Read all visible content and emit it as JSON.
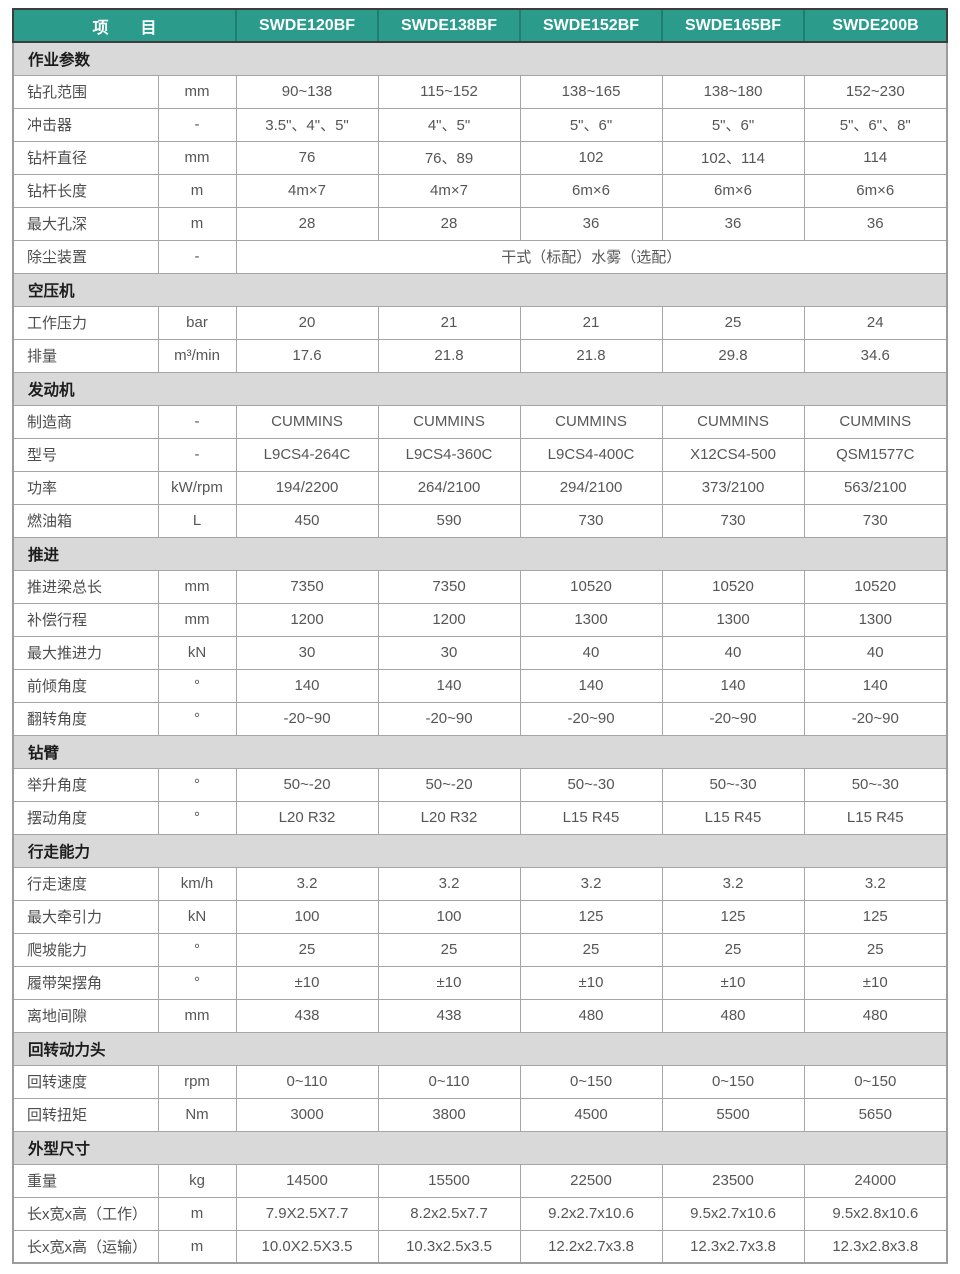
{
  "colors": {
    "header_bg": "#2b9b8b",
    "header_text": "#ffffff",
    "header_divider": "#1e7f71",
    "dark_border": "#3d3d3d",
    "section_bg": "#d9d9d9",
    "grid_border": "#a5a5a5",
    "body_text": "#565656"
  },
  "table": {
    "columns": [
      "项　　目",
      "SWDE120BF",
      "SWDE138BF",
      "SWDE152BF",
      "SWDE165BF",
      "SWDE200B"
    ],
    "sections": [
      {
        "title": "作业参数",
        "rows": [
          {
            "name": "钻孔范围",
            "unit": "mm",
            "values": [
              "90~138",
              "115~152",
              "138~165",
              "138~180",
              "152~230"
            ]
          },
          {
            "name": "冲击器",
            "unit": "-",
            "values": [
              "3.5\"、4\"、5\"",
              "4\"、5\"",
              "5\"、6\"",
              "5\"、6\"",
              "5\"、6\"、8\""
            ]
          },
          {
            "name": "钻杆直径",
            "unit": "mm",
            "values": [
              "76",
              "76、89",
              "102",
              "102、114",
              "114"
            ]
          },
          {
            "name": "钻杆长度",
            "unit": "m",
            "values": [
              "4m×7",
              "4m×7",
              "6m×6",
              "6m×6",
              "6m×6"
            ]
          },
          {
            "name": "最大孔深",
            "unit": "m",
            "values": [
              "28",
              "28",
              "36",
              "36",
              "36"
            ]
          },
          {
            "name": "除尘装置",
            "unit": "-",
            "span": "干式（标配）水雾（选配）"
          }
        ]
      },
      {
        "title": "空压机",
        "rows": [
          {
            "name": "工作压力",
            "unit": "bar",
            "values": [
              "20",
              "21",
              "21",
              "25",
              "24"
            ]
          },
          {
            "name": "排量",
            "unit": "m³/min",
            "values": [
              "17.6",
              "21.8",
              "21.8",
              "29.8",
              "34.6"
            ]
          }
        ]
      },
      {
        "title": "发动机",
        "rows": [
          {
            "name": "制造商",
            "unit": "-",
            "values": [
              "CUMMINS",
              "CUMMINS",
              "CUMMINS",
              "CUMMINS",
              "CUMMINS"
            ]
          },
          {
            "name": "型号",
            "unit": "-",
            "values": [
              "L9CS4-264C",
              "L9CS4-360C",
              "L9CS4-400C",
              "X12CS4-500",
              "QSM1577C"
            ]
          },
          {
            "name": "功率",
            "unit": "kW/rpm",
            "values": [
              "194/2200",
              "264/2100",
              "294/2100",
              "373/2100",
              "563/2100"
            ]
          },
          {
            "name": "燃油箱",
            "unit": "L",
            "values": [
              "450",
              "590",
              "730",
              "730",
              "730"
            ]
          }
        ]
      },
      {
        "title": "推进",
        "rows": [
          {
            "name": "推进梁总长",
            "unit": "mm",
            "values": [
              "7350",
              "7350",
              "10520",
              "10520",
              "10520"
            ]
          },
          {
            "name": "补偿行程",
            "unit": "mm",
            "values": [
              "1200",
              "1200",
              "1300",
              "1300",
              "1300"
            ]
          },
          {
            "name": "最大推进力",
            "unit": "kN",
            "values": [
              "30",
              "30",
              "40",
              "40",
              "40"
            ]
          },
          {
            "name": "前倾角度",
            "unit": "°",
            "values": [
              "140",
              "140",
              "140",
              "140",
              "140"
            ]
          },
          {
            "name": "翻转角度",
            "unit": "°",
            "values": [
              "-20~90",
              "-20~90",
              "-20~90",
              "-20~90",
              "-20~90"
            ]
          }
        ]
      },
      {
        "title": "钻臂",
        "rows": [
          {
            "name": "举升角度",
            "unit": "°",
            "values": [
              "50~-20",
              "50~-20",
              "50~-30",
              "50~-30",
              "50~-30"
            ]
          },
          {
            "name": "摆动角度",
            "unit": "°",
            "values": [
              "L20 R32",
              "L20 R32",
              "L15 R45",
              "L15 R45",
              "L15 R45"
            ]
          }
        ]
      },
      {
        "title": "行走能力",
        "rows": [
          {
            "name": "行走速度",
            "unit": "km/h",
            "values": [
              "3.2",
              "3.2",
              "3.2",
              "3.2",
              "3.2"
            ]
          },
          {
            "name": "最大牵引力",
            "unit": "kN",
            "values": [
              "100",
              "100",
              "125",
              "125",
              "125"
            ]
          },
          {
            "name": "爬坡能力",
            "unit": "°",
            "values": [
              "25",
              "25",
              "25",
              "25",
              "25"
            ]
          },
          {
            "name": "履带架摆角",
            "unit": "°",
            "values": [
              "±10",
              "±10",
              "±10",
              "±10",
              "±10"
            ]
          },
          {
            "name": "离地间隙",
            "unit": "mm",
            "values": [
              "438",
              "438",
              "480",
              "480",
              "480"
            ]
          }
        ]
      },
      {
        "title": "回转动力头",
        "rows": [
          {
            "name": "回转速度",
            "unit": "rpm",
            "values": [
              "0~110",
              "0~110",
              "0~150",
              "0~150",
              "0~150"
            ]
          },
          {
            "name": "回转扭矩",
            "unit": "Nm",
            "values": [
              "3000",
              "3800",
              "4500",
              "5500",
              "5650"
            ]
          }
        ]
      },
      {
        "title": "外型尺寸",
        "rows": [
          {
            "name": "重量",
            "unit": "kg",
            "values": [
              "14500",
              "15500",
              "22500",
              "23500",
              "24000"
            ]
          },
          {
            "name": "长x宽x高（工作）",
            "unit": "m",
            "values": [
              "7.9X2.5X7.7",
              "8.2x2.5x7.7",
              "9.2x2.7x10.6",
              "9.5x2.7x10.6",
              "9.5x2.8x10.6"
            ]
          },
          {
            "name": "长x宽x高（运输）",
            "unit": "m",
            "values": [
              "10.0X2.5X3.5",
              "10.3x2.5x3.5",
              "12.2x2.7x3.8",
              "12.3x2.7x3.8",
              "12.3x2.8x3.8"
            ]
          }
        ]
      }
    ]
  }
}
